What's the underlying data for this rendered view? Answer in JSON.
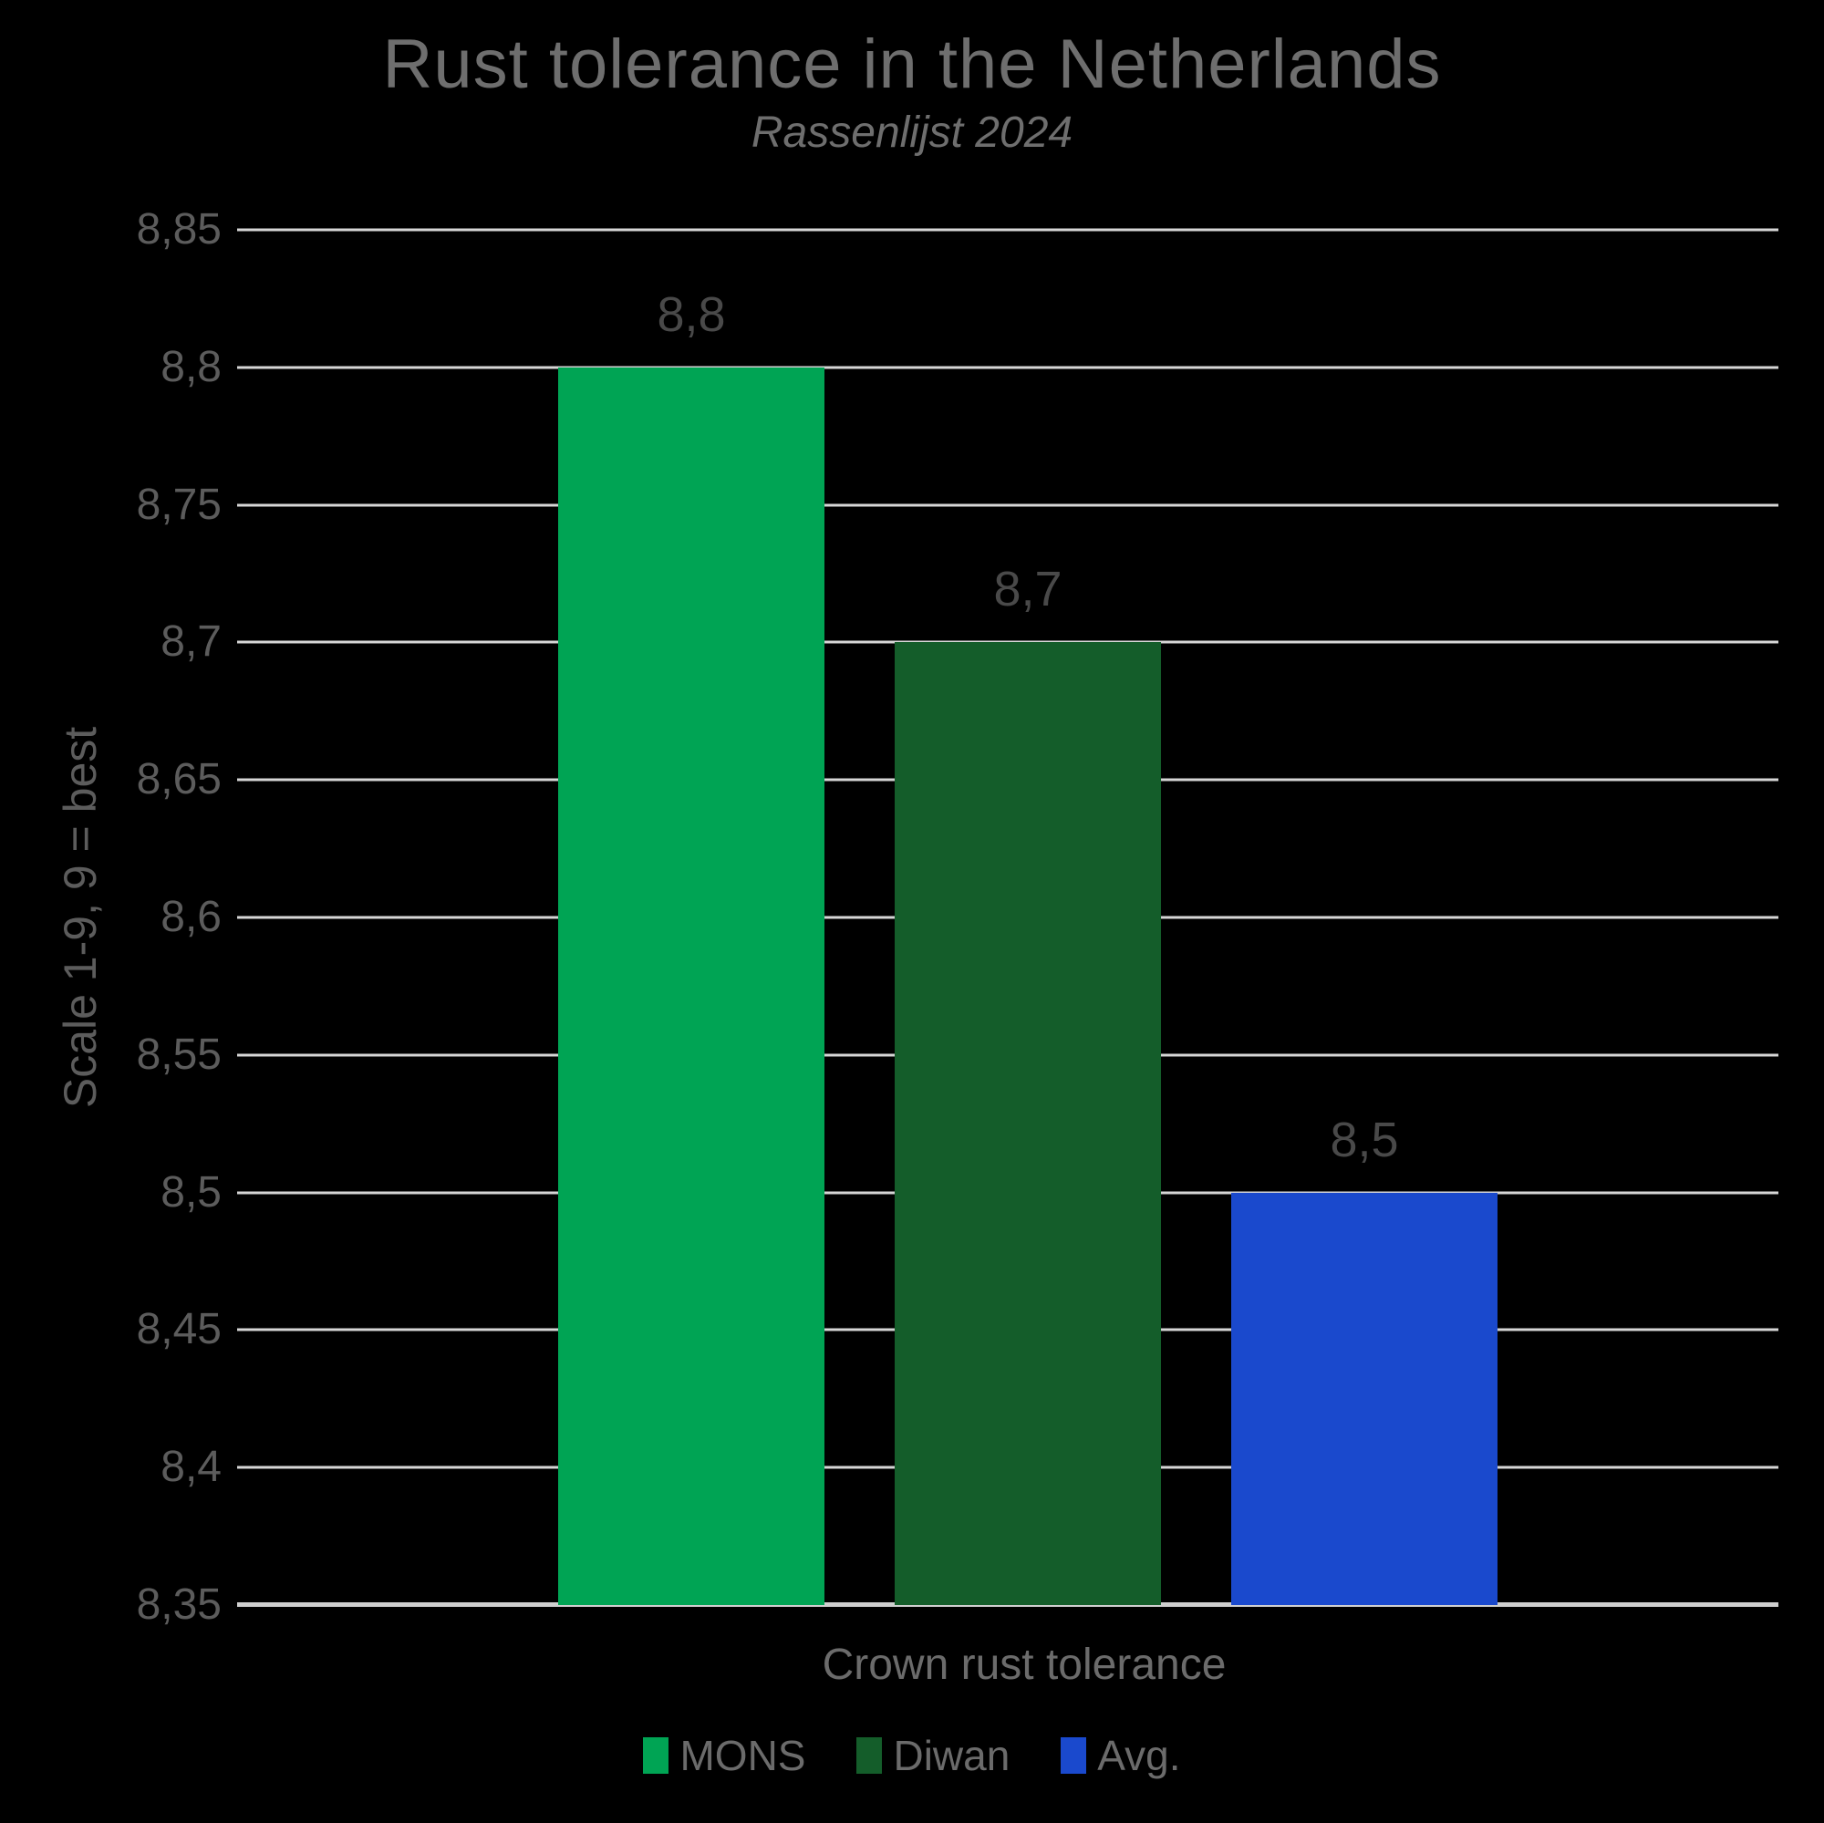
{
  "page": {
    "background": "#000000"
  },
  "colors": {
    "background": "#000000",
    "title_text": "#6E6E6E",
    "axis_text": "#5C5C5C",
    "data_label_text": "#494949",
    "legend_text": "#6B6B6B",
    "gridline": "#D6D6D6",
    "axis_line": "#CFCFCF",
    "mons_green": "#00A454",
    "diwan_dark_green": "#145D2A",
    "avg_blue": "#1A49CD"
  },
  "chart_data": {
    "type": "bar",
    "title": "Rust tolerance in the Netherlands",
    "subtitle": "Rassenlijst 2024",
    "xlabel": "Crown rust tolerance",
    "ylabel": "Scale 1-9, 9 = best",
    "categories": [
      "Crown rust tolerance"
    ],
    "series": [
      {
        "name": "MONS",
        "values": [
          8.8
        ],
        "value_label": "8,8",
        "color": "#00A454"
      },
      {
        "name": "Diwan",
        "values": [
          8.7
        ],
        "value_label": "8,7",
        "color": "#145D2A"
      },
      {
        "name": "Avg.",
        "values": [
          8.5
        ],
        "value_label": "8,5",
        "color": "#1A49CD"
      }
    ],
    "ylim": [
      8.35,
      8.85
    ],
    "ytick_step": 0.05,
    "yticks": [
      {
        "value": 8.85,
        "label": "8,85"
      },
      {
        "value": 8.8,
        "label": "8,8"
      },
      {
        "value": 8.75,
        "label": "8,75"
      },
      {
        "value": 8.7,
        "label": "8,7"
      },
      {
        "value": 8.65,
        "label": "8,65"
      },
      {
        "value": 8.6,
        "label": "8,6"
      },
      {
        "value": 8.55,
        "label": "8,55"
      },
      {
        "value": 8.5,
        "label": "8,5"
      },
      {
        "value": 8.45,
        "label": "8,45"
      },
      {
        "value": 8.4,
        "label": "8,4"
      },
      {
        "value": 8.35,
        "label": "8,35"
      }
    ],
    "grid": true,
    "legend_position": "bottom",
    "decimal_separator": ","
  }
}
